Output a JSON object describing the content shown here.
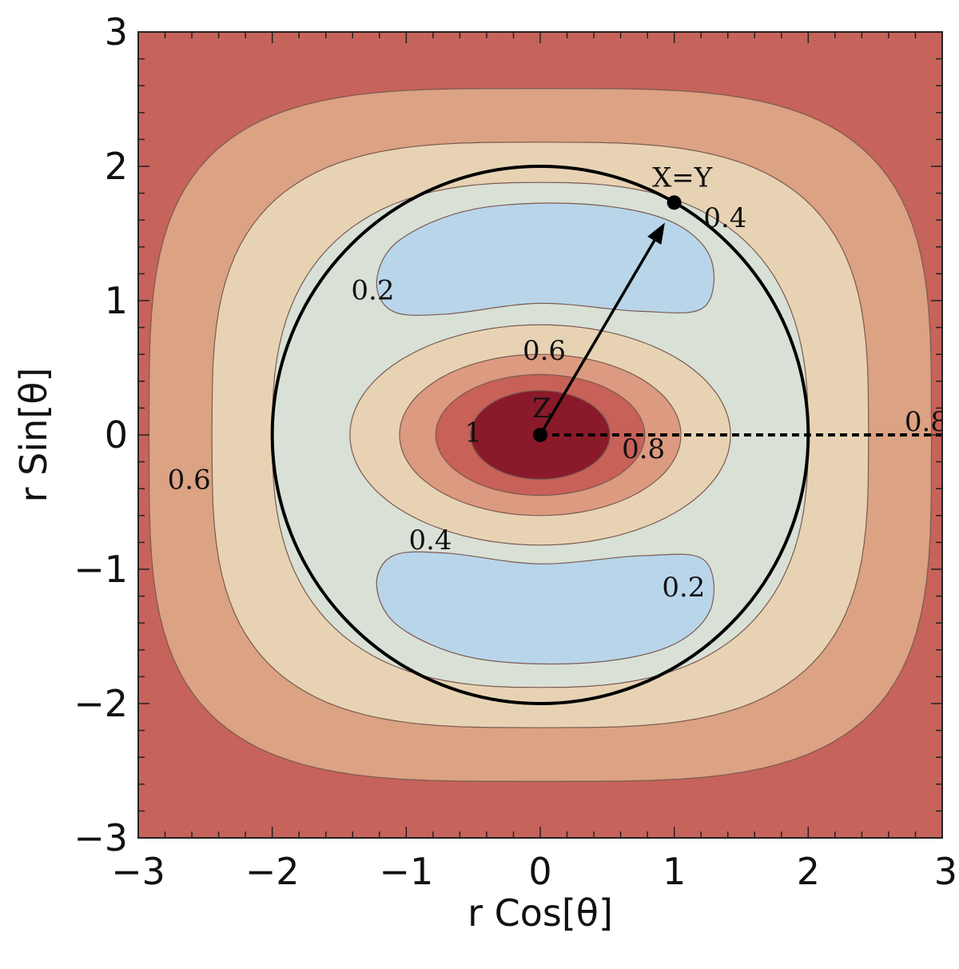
{
  "chart_data": {
    "type": "contour",
    "xlabel": "r Cos[θ]",
    "ylabel": "r Sin[θ]",
    "xlim": [
      -3,
      3
    ],
    "ylim": [
      -3,
      3
    ],
    "x_ticks": [
      "−3",
      "−2",
      "−1",
      "0",
      "1",
      "2",
      "3"
    ],
    "y_ticks": [
      "−3",
      "−2",
      "−1",
      "0",
      "1",
      "2",
      "3"
    ],
    "colors": {
      "level_outer": "#c6635b",
      "level_0_5": "#dba283",
      "level_0_4": "#e7d3b4",
      "level_0_2": "#d9e0d6",
      "level_low": "#b9d5ea",
      "level_0_8": "#dc9a80",
      "level_0_9": "#c86158",
      "level_peak": "#8a1a2a"
    },
    "contour_labels": [
      {
        "text": "0.4",
        "x": 1.38,
        "y": 1.62
      },
      {
        "text": "0.2",
        "x": -1.25,
        "y": 1.08
      },
      {
        "text": "0.6",
        "x": 0.03,
        "y": 0.63
      },
      {
        "text": "1",
        "x": -0.5,
        "y": 0.02
      },
      {
        "text": "0.8",
        "x": 0.77,
        "y": -0.1
      },
      {
        "text": "0.6",
        "x": -2.62,
        "y": -0.33
      },
      {
        "text": "0.4",
        "x": -0.82,
        "y": -0.78
      },
      {
        "text": "0.2",
        "x": 1.07,
        "y": -1.13
      },
      {
        "text": "0.8",
        "x": 2.88,
        "y": 0.1
      }
    ],
    "circle_radius": 2,
    "points": [
      {
        "label": "X=Y",
        "x": 1.0,
        "y": 1.73
      },
      {
        "label": "Z",
        "x": 0.0,
        "y": 0.0
      }
    ],
    "arrow": {
      "from": [
        0,
        0
      ],
      "to": [
        0.93,
        1.58
      ]
    },
    "dashed_line": {
      "from": [
        0,
        0
      ],
      "to": [
        3,
        0
      ]
    }
  }
}
